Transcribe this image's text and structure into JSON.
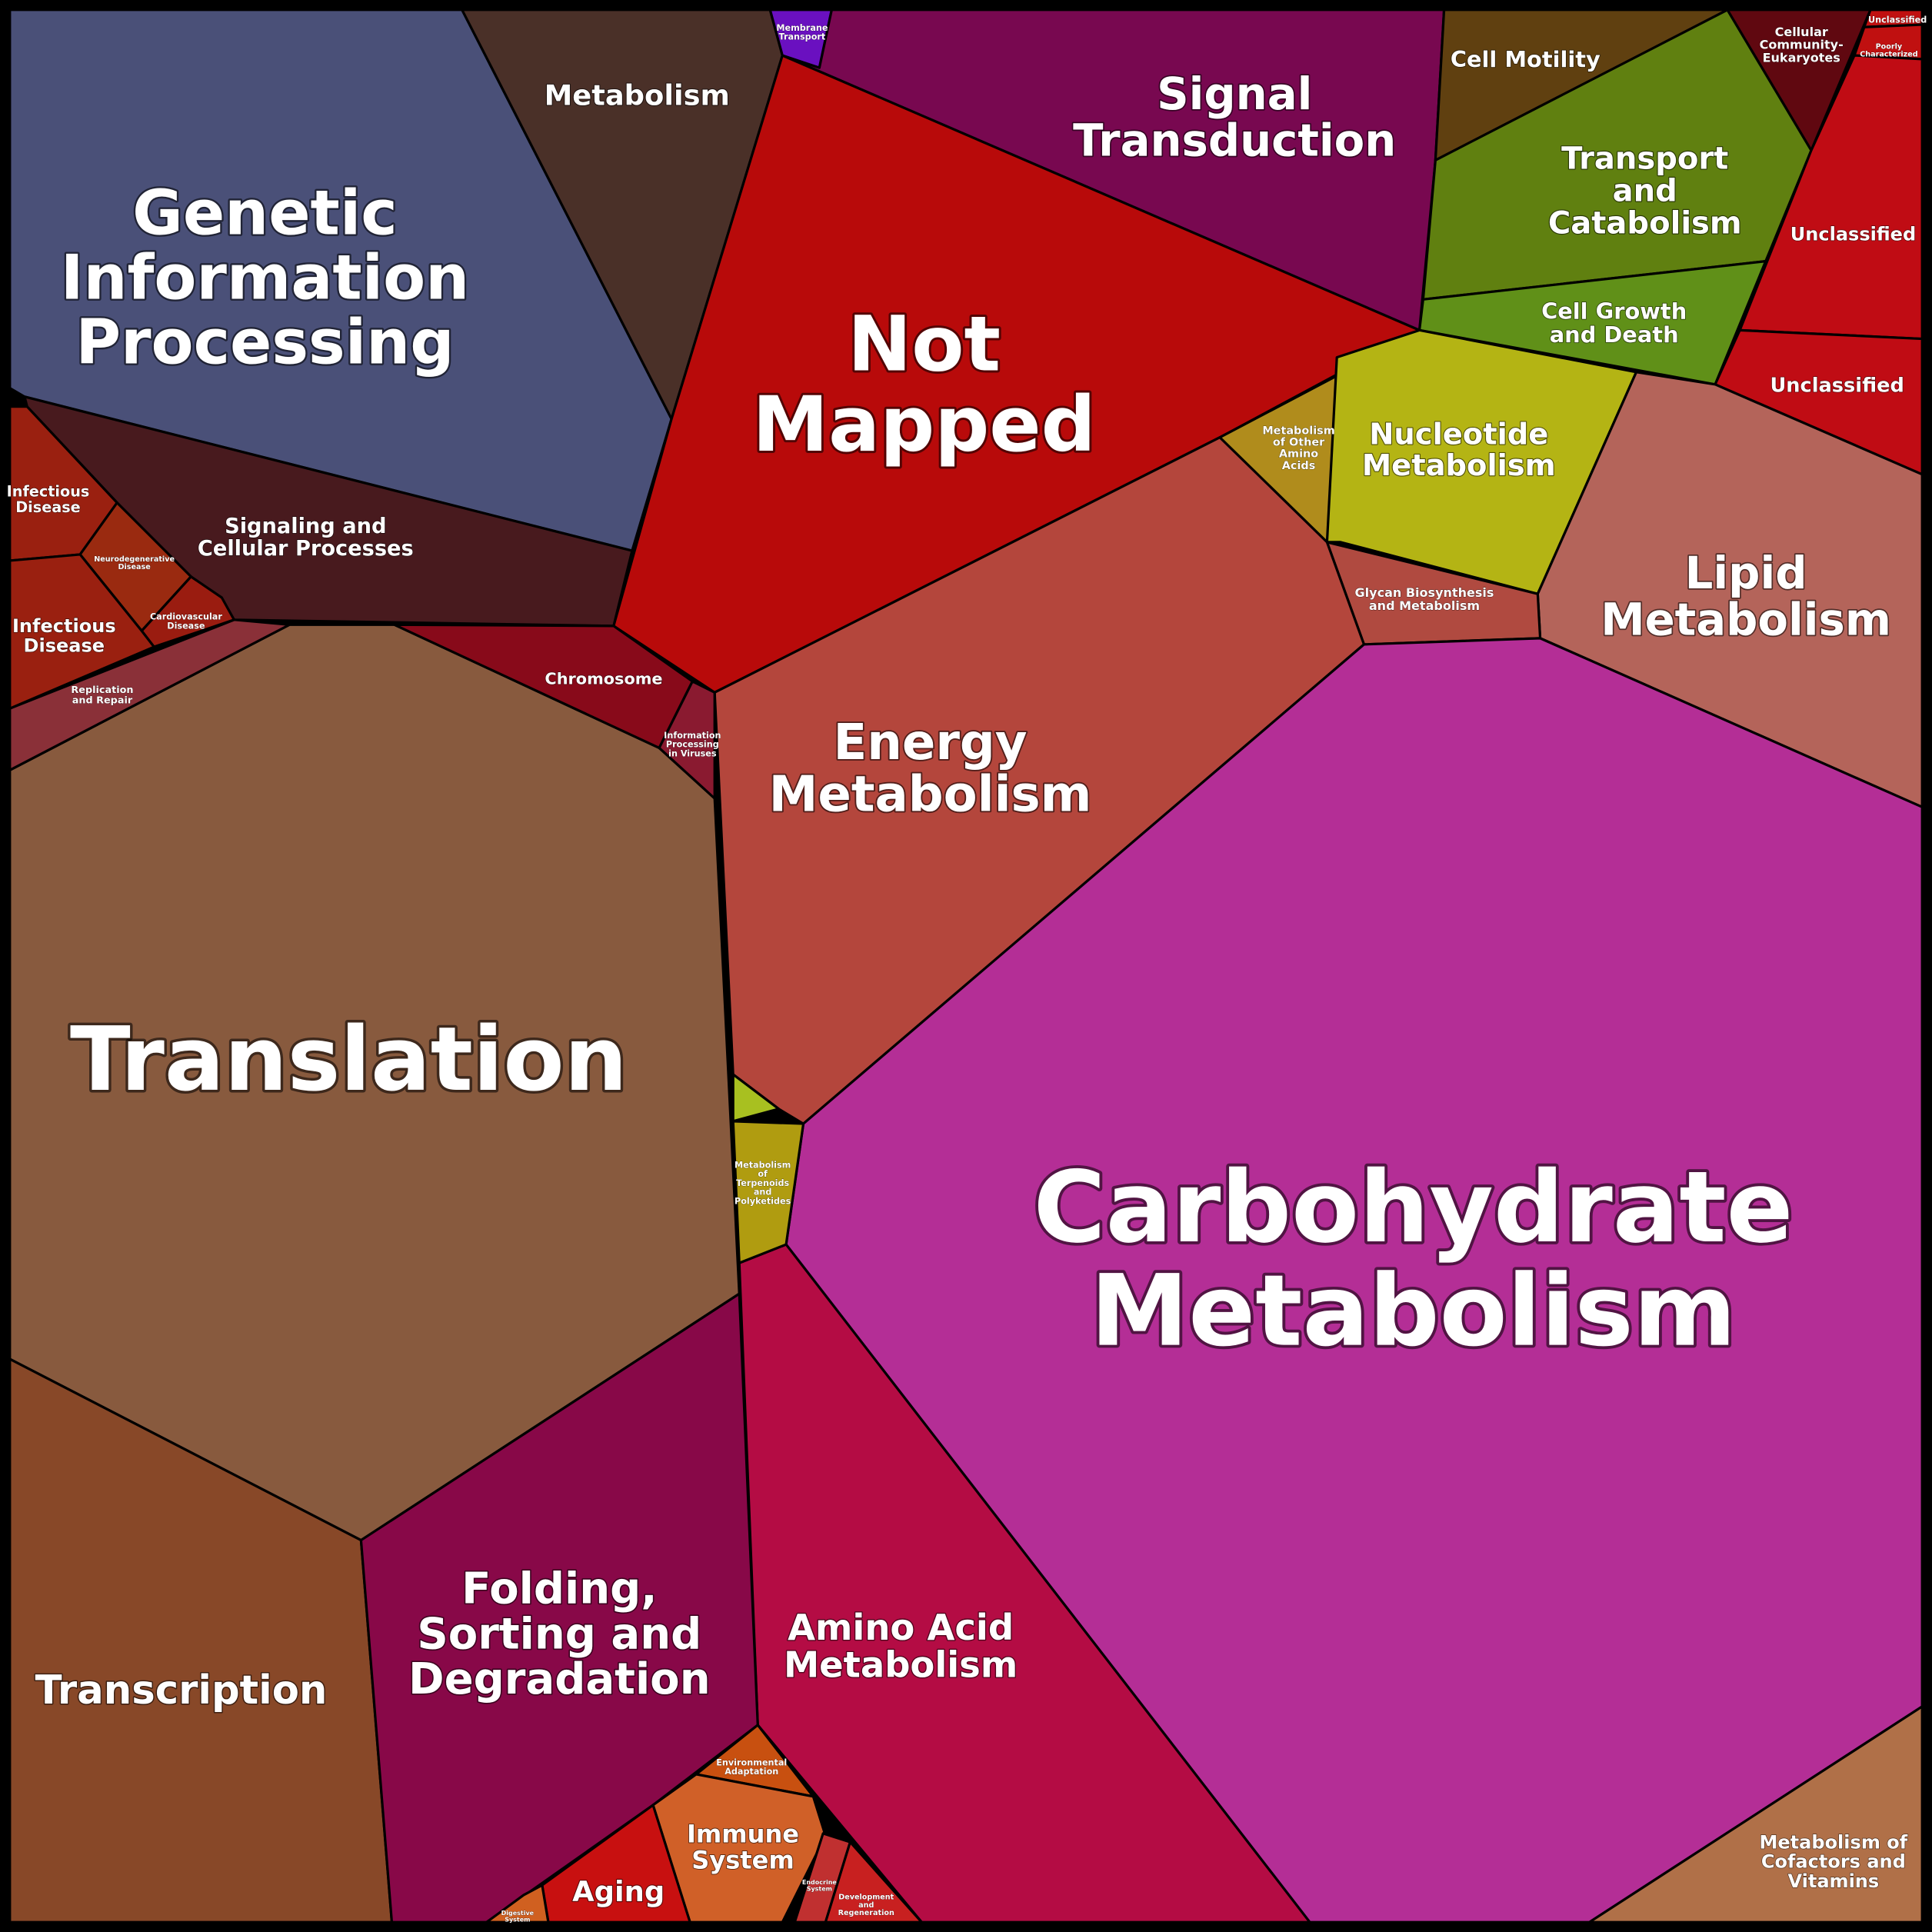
{
  "nodes": [
    {
      "label": [
        "Genetic",
        "Information",
        "Processing"
      ]
    },
    {
      "label": [
        "Metabolism"
      ]
    },
    {
      "label": [
        "Membrane",
        "Transport"
      ]
    },
    {
      "label": [
        "Signal",
        "Transduction"
      ]
    },
    {
      "label": [
        "Not",
        "Mapped"
      ]
    },
    {
      "label": [
        "Cell Motility"
      ]
    },
    {
      "label": [
        "Transport",
        "and",
        "Catabolism"
      ]
    },
    {
      "label": [
        "Cell Growth",
        "and Death"
      ]
    },
    {
      "label": [
        "Cellular",
        "Community-",
        "Eukaryotes"
      ]
    },
    {
      "label": [
        "Unclassified"
      ]
    },
    {
      "label": [
        "Poorly",
        "Characterized"
      ]
    },
    {
      "label": [
        "Unclassified"
      ]
    },
    {
      "label": [
        "Unclassified"
      ]
    },
    {
      "label": [
        "Metabolism",
        "of Other",
        "Amino",
        "Acids"
      ]
    },
    {
      "label": [
        "Nucleotide",
        "Metabolism"
      ]
    },
    {
      "label": [
        "Lipid",
        "Metabolism"
      ]
    },
    {
      "label": [
        "Glycan Biosynthesis",
        "and Metabolism"
      ]
    },
    {
      "label": [
        "Energy",
        "Metabolism"
      ]
    },
    {
      "label": [
        "Carbohydrate",
        "Metabolism"
      ]
    },
    {
      "label": [
        "Metabolism of",
        "Cofactors and",
        "Vitamins"
      ]
    },
    {
      "label": [
        "Amino Acid",
        "Metabolism"
      ]
    },
    {
      "label": [
        "Metabolism",
        "of",
        "Terpenoids",
        "and",
        "Polyketides"
      ]
    },
    {
      "label": [
        "Translation"
      ]
    },
    {
      "label": [
        "Transcription"
      ]
    },
    {
      "label": [
        "Folding,",
        "Sorting and",
        "Degradation"
      ]
    },
    {
      "label": [
        "Signaling and",
        "Cellular Processes"
      ]
    },
    {
      "label": [
        "Chromosome"
      ]
    },
    {
      "label": [
        "Information",
        "Processing",
        "in Viruses"
      ]
    },
    {
      "label": [
        "Replication",
        "and Repair"
      ]
    },
    {
      "label": [
        "Infectious",
        "Disease"
      ]
    },
    {
      "label": [
        "Neurodegenerative",
        "Disease"
      ]
    },
    {
      "label": [
        "Cardiovascular",
        "Disease"
      ]
    },
    {
      "label": [
        "Infectious",
        "Disease"
      ]
    },
    {
      "label": [
        "Environmental",
        "Adaptation"
      ]
    },
    {
      "label": [
        "Immune",
        "System"
      ]
    },
    {
      "label": [
        "Aging"
      ]
    },
    {
      "label": [
        "Endocrine",
        "System"
      ]
    },
    {
      "label": [
        "Development",
        "and",
        "Regeneration"
      ]
    },
    {
      "label": [
        "Digestive",
        "System"
      ]
    }
  ]
}
